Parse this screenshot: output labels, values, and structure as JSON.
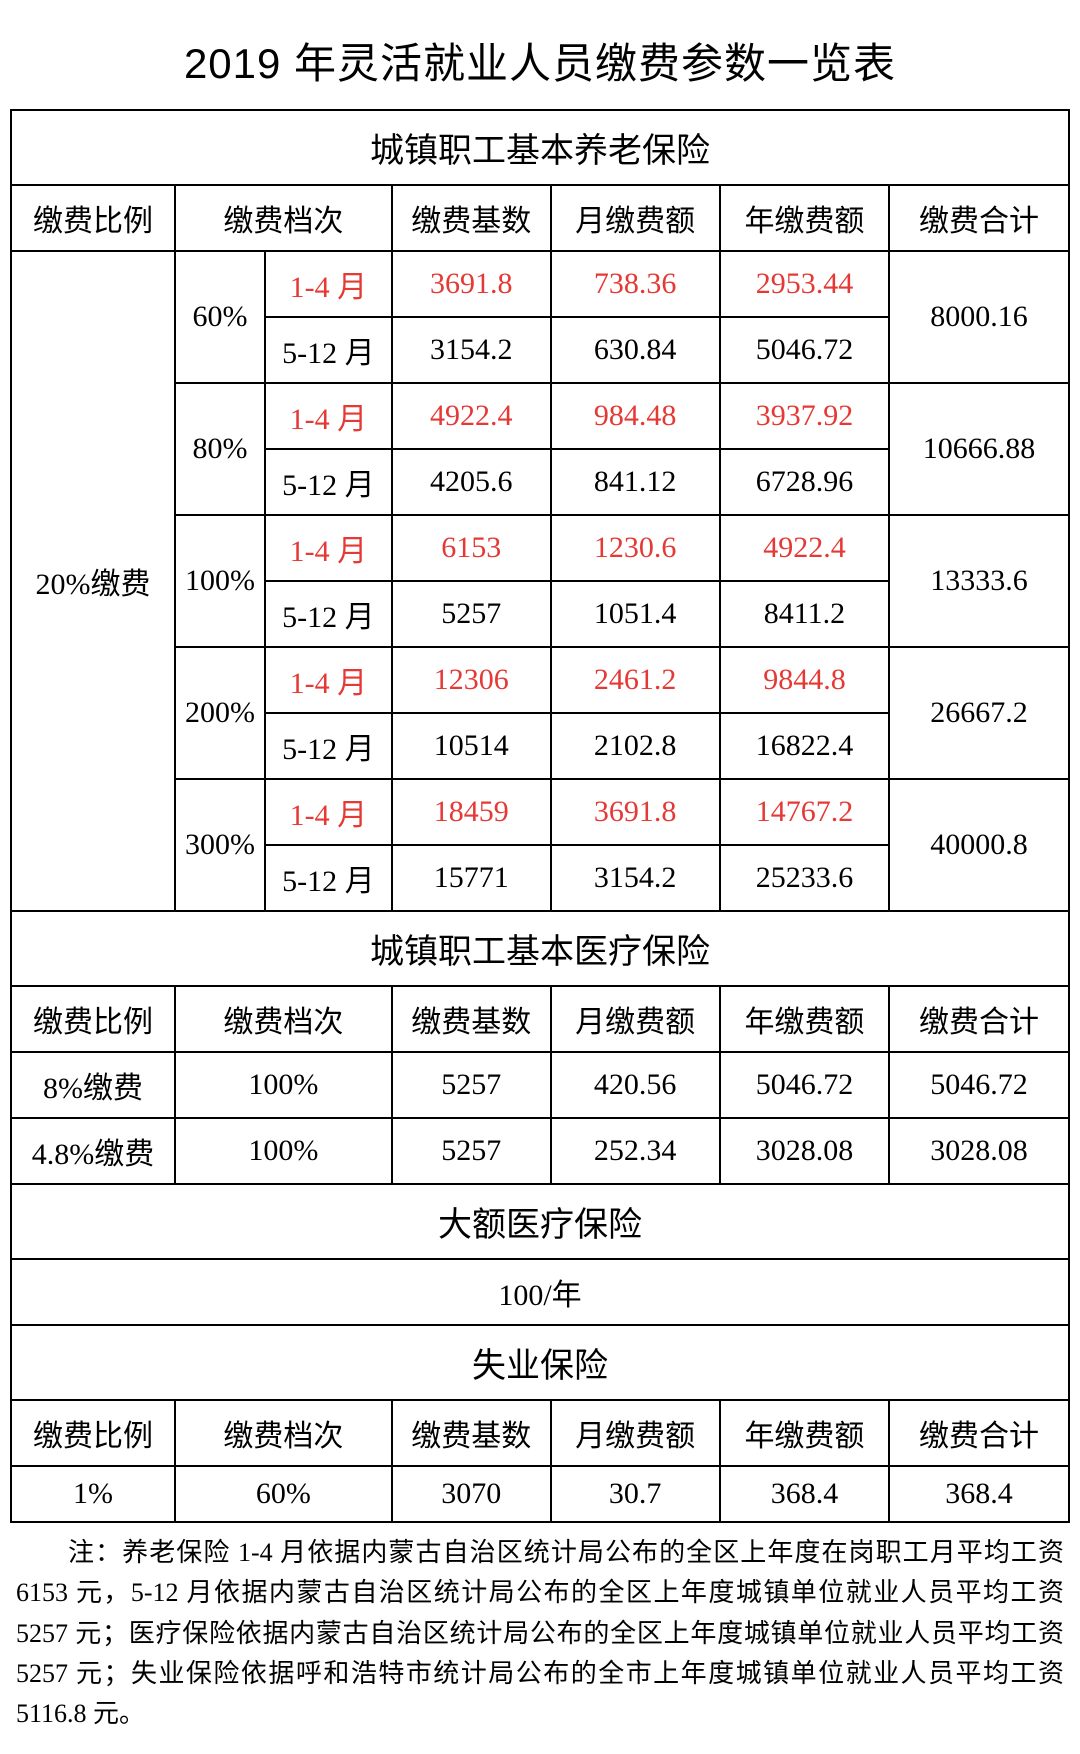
{
  "title": "2019 年灵活就业人员缴费参数一览表",
  "columns": [
    "缴费比例",
    "缴费档次",
    "缴费基数",
    "月缴费额",
    "年缴费额",
    "缴费合计"
  ],
  "section1": {
    "header": "城镇职工基本养老保险",
    "ratio": "20%缴费",
    "tiers": [
      {
        "pct": "60%",
        "r1": [
          "1-4 月",
          "3691.8",
          "738.36",
          "2953.44"
        ],
        "r2": [
          "5-12 月",
          "3154.2",
          "630.84",
          "5046.72"
        ],
        "total": "8000.16"
      },
      {
        "pct": "80%",
        "r1": [
          "1-4 月",
          "4922.4",
          "984.48",
          "3937.92"
        ],
        "r2": [
          "5-12 月",
          "4205.6",
          "841.12",
          "6728.96"
        ],
        "total": "10666.88"
      },
      {
        "pct": "100%",
        "r1": [
          "1-4 月",
          "6153",
          "1230.6",
          "4922.4"
        ],
        "r2": [
          "5-12 月",
          "5257",
          "1051.4",
          "8411.2"
        ],
        "total": "13333.6"
      },
      {
        "pct": "200%",
        "r1": [
          "1-4 月",
          "12306",
          "2461.2",
          "9844.8"
        ],
        "r2": [
          "5-12 月",
          "10514",
          "2102.8",
          "16822.4"
        ],
        "total": "26667.2"
      },
      {
        "pct": "300%",
        "r1": [
          "1-4 月",
          "18459",
          "3691.8",
          "14767.2"
        ],
        "r2": [
          "5-12 月",
          "15771",
          "3154.2",
          "25233.6"
        ],
        "total": "40000.8"
      }
    ]
  },
  "section2": {
    "header": "城镇职工基本医疗保险",
    "rows": [
      [
        "8%缴费",
        "100%",
        "5257",
        "420.56",
        "5046.72",
        "5046.72"
      ],
      [
        "4.8%缴费",
        "100%",
        "5257",
        "252.34",
        "3028.08",
        "3028.08"
      ]
    ]
  },
  "section3": {
    "header": "大额医疗保险",
    "value": "100/年"
  },
  "section4": {
    "header": "失业保险",
    "row": [
      "1%",
      "60%",
      "3070",
      "30.7",
      "368.4",
      "368.4"
    ]
  },
  "footnote": "注：养老保险 1-4 月依据内蒙古自治区统计局公布的全区上年度在岗职工月平均工资 6153 元，5-12 月依据内蒙古自治区统计局公布的全区上年度城镇单位就业人员平均工资 5257 元；医疗保险依据内蒙古自治区统计局公布的全区上年度城镇单位就业人员平均工资 5257 元；失业保险依据呼和浩特市统计局公布的全市上年度城镇单位就业人员平均工资 5116.8 元。",
  "colors": {
    "text": "#000000",
    "highlight": "#e53935",
    "border": "#000000",
    "background": "#ffffff"
  },
  "typography": {
    "title_fontsize": 42,
    "cell_fontsize": 30,
    "section_fontsize": 34,
    "footnote_fontsize": 26
  }
}
